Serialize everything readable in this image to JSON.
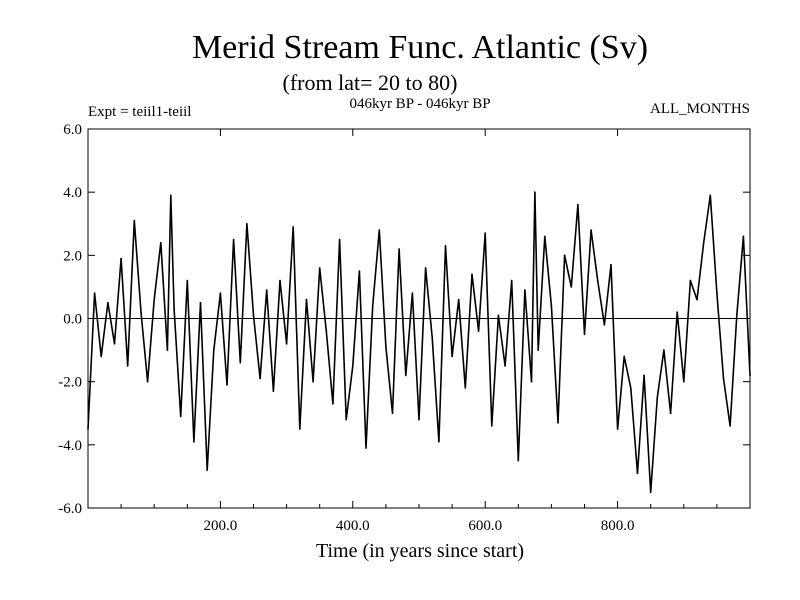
{
  "chart_data": {
    "type": "line",
    "title": "Merid Stream Func. Atlantic (Sv)",
    "subtitle": "(from lat= 20 to 80)",
    "experiment_label": "Expt = teiil1-teiil",
    "period_label": "046kyr BP - 046kyr BP",
    "months_label": "ALL_MONTHS",
    "xlabel": "Time (in years since start)",
    "ylabel": "",
    "xlim": [
      0,
      1000
    ],
    "ylim": [
      -6.0,
      6.0
    ],
    "x_ticks": [
      {
        "value": 200,
        "label": "200.0"
      },
      {
        "value": 400,
        "label": "400.0"
      },
      {
        "value": 600,
        "label": "600.0"
      },
      {
        "value": 800,
        "label": "800.0"
      }
    ],
    "y_ticks": [
      {
        "value": 6,
        "label": "6.0"
      },
      {
        "value": 4,
        "label": "4.0"
      },
      {
        "value": 2,
        "label": "2.0"
      },
      {
        "value": 0,
        "label": "0.0"
      },
      {
        "value": -2,
        "label": "-2.0"
      },
      {
        "value": -4,
        "label": "-4.0"
      },
      {
        "value": -6,
        "label": "-6.0"
      }
    ],
    "zero_line": true,
    "grid": false,
    "series": [
      {
        "x": [
          0,
          10,
          20,
          30,
          40,
          50,
          60,
          70,
          80,
          90,
          100,
          110,
          120,
          125,
          130,
          140,
          150,
          160,
          170,
          180,
          190,
          200,
          210,
          220,
          230,
          240,
          250,
          260,
          270,
          280,
          290,
          300,
          310,
          320,
          330,
          340,
          350,
          360,
          370,
          380,
          390,
          400,
          410,
          420,
          430,
          440,
          450,
          460,
          470,
          480,
          490,
          500,
          510,
          520,
          530,
          540,
          550,
          560,
          570,
          580,
          590,
          600,
          610,
          620,
          630,
          640,
          650,
          660,
          670,
          675,
          680,
          690,
          700,
          710,
          720,
          730,
          740,
          750,
          760,
          770,
          780,
          790,
          800,
          810,
          820,
          830,
          840,
          850,
          860,
          870,
          880,
          890,
          900,
          910,
          920,
          930,
          940,
          950,
          960,
          970,
          980,
          990,
          1000
        ],
        "values": [
          -3.5,
          0.8,
          -1.2,
          0.5,
          -0.8,
          1.9,
          -1.5,
          3.1,
          0.2,
          -2.0,
          0.6,
          2.4,
          -1.0,
          3.9,
          0.3,
          -3.1,
          1.2,
          -3.9,
          0.5,
          -4.8,
          -1.0,
          0.8,
          -2.1,
          2.5,
          -1.4,
          3.0,
          0.1,
          -1.9,
          0.9,
          -2.3,
          1.2,
          -0.8,
          2.9,
          -3.5,
          0.6,
          -2.0,
          1.6,
          -0.4,
          -2.7,
          2.5,
          -3.2,
          -1.5,
          1.5,
          -4.1,
          0.4,
          2.8,
          -0.9,
          -3.0,
          2.2,
          -1.8,
          0.8,
          -3.2,
          1.6,
          -0.6,
          -3.9,
          2.3,
          -1.2,
          0.6,
          -2.2,
          1.4,
          -0.4,
          2.7,
          -3.4,
          0.1,
          -1.5,
          1.2,
          -4.5,
          0.9,
          -2.0,
          4.0,
          -1.0,
          2.6,
          0.4,
          -3.3,
          2.0,
          1.0,
          3.6,
          -0.5,
          2.8,
          1.2,
          -0.2,
          1.7,
          -3.5,
          -1.2,
          -2.2,
          -4.9,
          -1.8,
          -5.5,
          -2.5,
          -1.0,
          -3.0,
          0.2,
          -2.0,
          1.2,
          0.6,
          2.4,
          3.9,
          0.8,
          -1.9,
          -3.4,
          0.1,
          2.6,
          -1.8
        ]
      }
    ]
  }
}
